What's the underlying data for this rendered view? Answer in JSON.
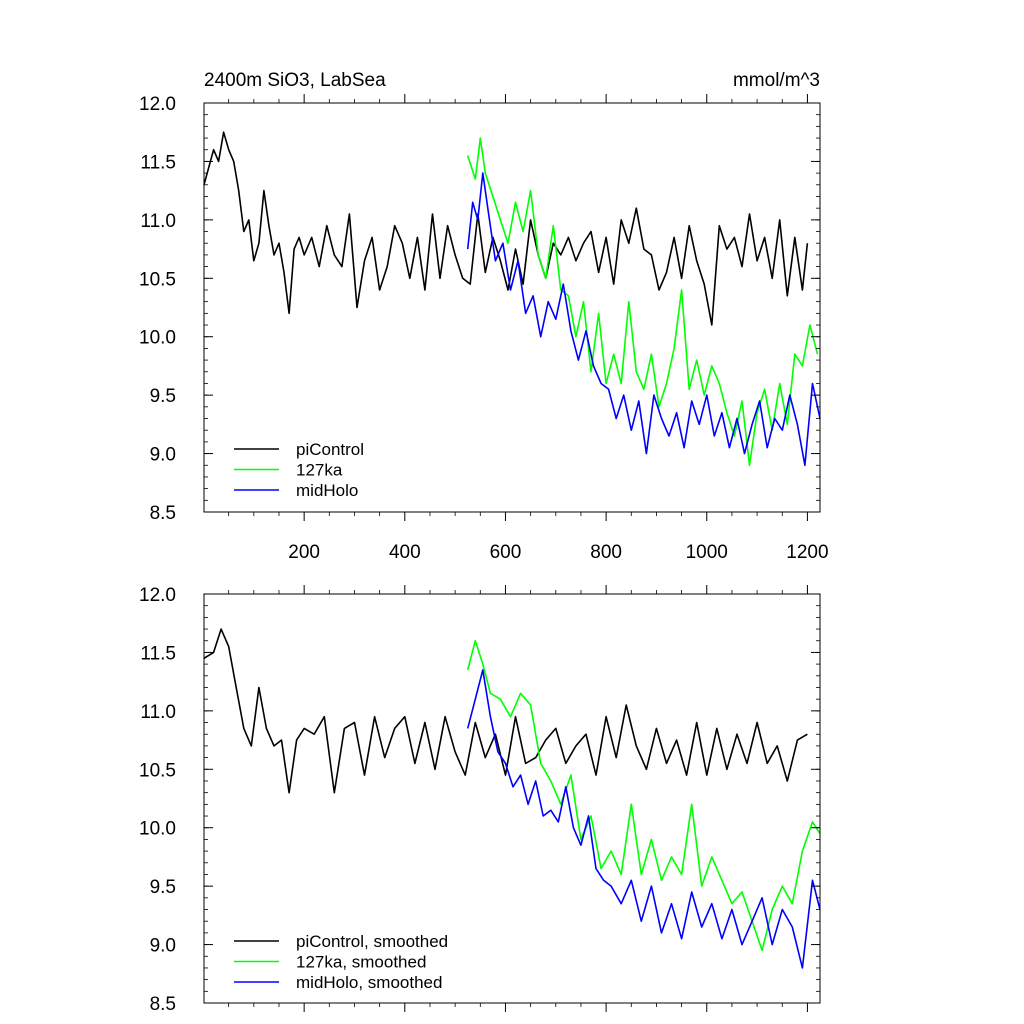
{
  "chart_data": [
    {
      "type": "line",
      "title_left": "2400m SiO3, LabSea",
      "title_right": "mmol/m^3",
      "xlim": [
        1,
        1225
      ],
      "ylim": [
        8.5,
        12.0
      ],
      "x_ticks": [
        200,
        400,
        600,
        800,
        1000,
        1200
      ],
      "y_ticks": [
        8.5,
        9.0,
        9.5,
        10.0,
        10.5,
        11.0,
        11.5,
        12.0
      ],
      "y_tick_labels": [
        "8.5",
        "9.0",
        "9.5",
        "10.0",
        "10.5",
        "11.0",
        "11.5",
        "12.0"
      ],
      "x_tick_labels": [
        "200",
        "400",
        "600",
        "800",
        "1000",
        "1200"
      ],
      "legend": [
        "piControl",
        "127ka",
        "midHolo"
      ],
      "series": [
        {
          "name": "piControl",
          "color": "#000000",
          "x": [
            1,
            20,
            30,
            40,
            50,
            60,
            70,
            80,
            90,
            100,
            110,
            120,
            130,
            140,
            150,
            160,
            170,
            180,
            190,
            200,
            215,
            230,
            245,
            260,
            275,
            290,
            305,
            320,
            335,
            350,
            365,
            380,
            395,
            410,
            425,
            440,
            455,
            470,
            485,
            500,
            515,
            530,
            545,
            560,
            575,
            590,
            605,
            620,
            635,
            650,
            665,
            680,
            695,
            710,
            725,
            740,
            755,
            770,
            785,
            800,
            815,
            830,
            845,
            860,
            875,
            890,
            905,
            920,
            935,
            950,
            965,
            980,
            995,
            1010,
            1025,
            1040,
            1055,
            1070,
            1085,
            1100,
            1115,
            1130,
            1145,
            1160,
            1175,
            1190,
            1200
          ],
          "values": [
            11.3,
            11.6,
            11.5,
            11.75,
            11.6,
            11.5,
            11.25,
            10.9,
            11.0,
            10.65,
            10.8,
            11.25,
            10.95,
            10.7,
            10.8,
            10.55,
            10.2,
            10.75,
            10.85,
            10.7,
            10.85,
            10.6,
            10.95,
            10.7,
            10.6,
            11.05,
            10.25,
            10.65,
            10.85,
            10.4,
            10.6,
            10.95,
            10.8,
            10.5,
            10.85,
            10.4,
            11.05,
            10.5,
            10.95,
            10.7,
            10.5,
            10.45,
            11.05,
            10.55,
            10.85,
            10.65,
            10.4,
            10.75,
            10.45,
            11.0,
            10.7,
            10.5,
            10.8,
            10.7,
            10.85,
            10.65,
            10.8,
            10.9,
            10.55,
            10.85,
            10.45,
            11.0,
            10.8,
            11.1,
            10.75,
            10.7,
            10.4,
            10.55,
            10.85,
            10.5,
            10.95,
            10.65,
            10.45,
            10.1,
            10.95,
            10.75,
            10.85,
            10.6,
            11.05,
            10.65,
            10.85,
            10.5,
            11.0,
            10.35,
            10.85,
            10.4,
            10.8
          ]
        },
        {
          "name": "127ka",
          "color": "#00ff00",
          "x": [
            525,
            540,
            550,
            560,
            575,
            590,
            605,
            620,
            635,
            650,
            665,
            680,
            695,
            710,
            725,
            740,
            755,
            770,
            785,
            800,
            815,
            830,
            845,
            860,
            875,
            890,
            905,
            920,
            935,
            950,
            965,
            980,
            995,
            1010,
            1025,
            1040,
            1055,
            1070,
            1085,
            1100,
            1115,
            1130,
            1145,
            1160,
            1175,
            1190,
            1205,
            1220
          ],
          "values": [
            11.55,
            11.35,
            11.7,
            11.4,
            11.2,
            11.0,
            10.8,
            11.15,
            10.9,
            11.25,
            10.7,
            10.5,
            10.95,
            10.4,
            10.35,
            10.0,
            10.3,
            9.7,
            10.2,
            9.6,
            9.85,
            9.6,
            10.3,
            9.7,
            9.55,
            9.85,
            9.4,
            9.6,
            9.9,
            10.4,
            9.55,
            9.8,
            9.5,
            9.75,
            9.6,
            9.35,
            9.15,
            9.45,
            8.9,
            9.35,
            9.55,
            9.2,
            9.6,
            9.25,
            9.85,
            9.75,
            10.1,
            9.85
          ]
        },
        {
          "name": "midHolo",
          "color": "#0000ff",
          "x": [
            525,
            535,
            545,
            555,
            565,
            580,
            595,
            610,
            625,
            640,
            655,
            670,
            685,
            700,
            715,
            730,
            745,
            760,
            775,
            790,
            805,
            820,
            835,
            850,
            865,
            880,
            895,
            910,
            925,
            940,
            955,
            970,
            985,
            1000,
            1015,
            1030,
            1045,
            1060,
            1075,
            1090,
            1105,
            1120,
            1135,
            1150,
            1165,
            1180,
            1195,
            1210,
            1225
          ],
          "values": [
            10.75,
            11.15,
            11.0,
            11.4,
            11.1,
            10.65,
            10.8,
            10.4,
            10.65,
            10.2,
            10.35,
            10.0,
            10.3,
            10.15,
            10.45,
            10.05,
            9.8,
            10.05,
            9.75,
            9.6,
            9.55,
            9.3,
            9.5,
            9.2,
            9.45,
            9.0,
            9.5,
            9.3,
            9.15,
            9.35,
            9.05,
            9.45,
            9.25,
            9.5,
            9.15,
            9.35,
            9.05,
            9.3,
            9.0,
            9.25,
            9.45,
            9.05,
            9.3,
            9.2,
            9.5,
            9.25,
            8.9,
            9.6,
            9.3
          ]
        }
      ]
    },
    {
      "type": "line",
      "xlim": [
        1,
        1225
      ],
      "ylim": [
        8.5,
        12.0
      ],
      "x_ticks": [
        200,
        400,
        600,
        800,
        1000,
        1200
      ],
      "y_ticks": [
        8.5,
        9.0,
        9.5,
        10.0,
        10.5,
        11.0,
        11.5,
        12.0
      ],
      "y_tick_labels": [
        "8.5",
        "9.0",
        "9.5",
        "10.0",
        "10.5",
        "11.0",
        "11.5",
        "12.0"
      ],
      "legend": [
        "piControl, smoothed",
        "127ka, smoothed",
        "midHolo, smoothed"
      ],
      "series": [
        {
          "name": "piControl, smoothed",
          "color": "#000000",
          "x": [
            1,
            20,
            35,
            50,
            65,
            80,
            95,
            110,
            125,
            140,
            155,
            170,
            185,
            200,
            220,
            240,
            260,
            280,
            300,
            320,
            340,
            360,
            380,
            400,
            420,
            440,
            460,
            480,
            500,
            520,
            540,
            560,
            580,
            600,
            620,
            640,
            660,
            680,
            700,
            720,
            740,
            760,
            780,
            800,
            820,
            840,
            860,
            880,
            900,
            920,
            940,
            960,
            980,
            1000,
            1020,
            1040,
            1060,
            1080,
            1100,
            1120,
            1140,
            1160,
            1180,
            1200
          ],
          "values": [
            11.45,
            11.5,
            11.7,
            11.55,
            11.2,
            10.85,
            10.7,
            11.2,
            10.85,
            10.7,
            10.75,
            10.3,
            10.75,
            10.85,
            10.8,
            10.95,
            10.3,
            10.85,
            10.9,
            10.45,
            10.95,
            10.6,
            10.85,
            10.95,
            10.55,
            10.9,
            10.5,
            10.95,
            10.65,
            10.45,
            10.9,
            10.6,
            10.8,
            10.45,
            10.95,
            10.55,
            10.6,
            10.75,
            10.85,
            10.55,
            10.7,
            10.8,
            10.45,
            10.95,
            10.6,
            11.05,
            10.7,
            10.5,
            10.85,
            10.55,
            10.75,
            10.45,
            10.9,
            10.45,
            10.85,
            10.5,
            10.8,
            10.55,
            10.9,
            10.55,
            10.7,
            10.4,
            10.75,
            10.8
          ]
        },
        {
          "name": "127ka, smoothed",
          "color": "#00ff00",
          "x": [
            525,
            540,
            555,
            570,
            590,
            610,
            630,
            650,
            670,
            690,
            710,
            730,
            750,
            770,
            790,
            810,
            830,
            850,
            870,
            890,
            910,
            930,
            950,
            970,
            990,
            1010,
            1030,
            1050,
            1070,
            1090,
            1110,
            1130,
            1150,
            1170,
            1190,
            1210,
            1225
          ],
          "values": [
            11.35,
            11.6,
            11.4,
            11.15,
            11.1,
            10.95,
            11.15,
            11.05,
            10.55,
            10.4,
            10.2,
            10.45,
            9.9,
            10.1,
            9.65,
            9.8,
            9.6,
            10.2,
            9.6,
            9.9,
            9.55,
            9.75,
            9.6,
            10.2,
            9.5,
            9.75,
            9.55,
            9.35,
            9.45,
            9.2,
            8.95,
            9.3,
            9.5,
            9.35,
            9.8,
            10.05,
            9.95
          ]
        },
        {
          "name": "midHolo, smoothed",
          "color": "#0000ff",
          "x": [
            525,
            540,
            555,
            570,
            585,
            600,
            615,
            630,
            645,
            660,
            675,
            690,
            705,
            720,
            735,
            750,
            765,
            780,
            795,
            810,
            830,
            850,
            870,
            890,
            910,
            930,
            950,
            970,
            990,
            1010,
            1030,
            1050,
            1070,
            1090,
            1110,
            1130,
            1150,
            1170,
            1190,
            1210,
            1225
          ],
          "values": [
            10.85,
            11.1,
            11.35,
            10.95,
            10.65,
            10.55,
            10.35,
            10.45,
            10.2,
            10.4,
            10.1,
            10.15,
            10.05,
            10.35,
            10.0,
            9.85,
            10.1,
            9.65,
            9.55,
            9.5,
            9.35,
            9.55,
            9.2,
            9.5,
            9.1,
            9.35,
            9.05,
            9.45,
            9.15,
            9.35,
            9.05,
            9.3,
            9.0,
            9.2,
            9.4,
            9.0,
            9.3,
            9.15,
            8.8,
            9.55,
            9.3
          ]
        }
      ]
    }
  ]
}
